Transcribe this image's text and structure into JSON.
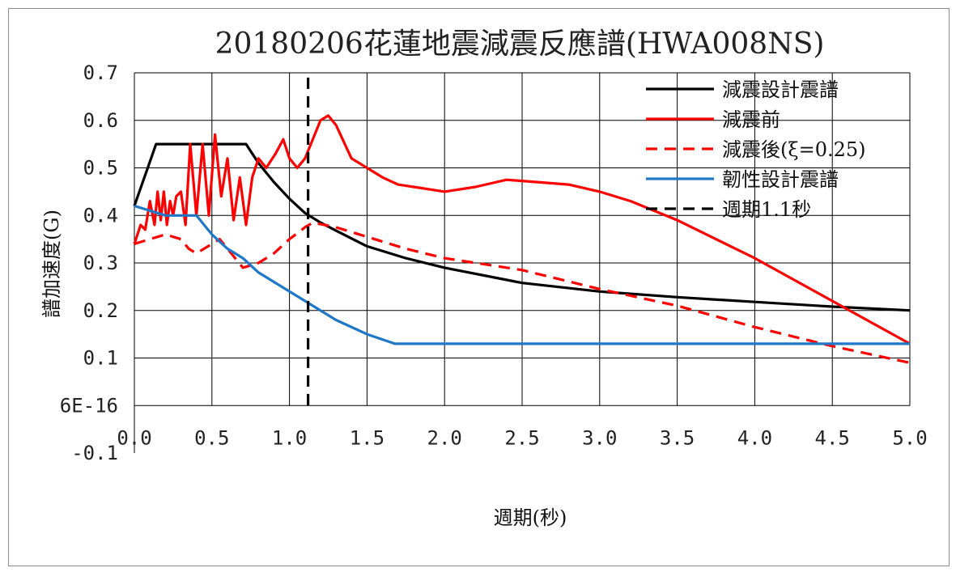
{
  "chart_data": {
    "type": "line",
    "title": "20180206花蓮地震減震反應譜(HWA008NS)",
    "xlabel": "週期(秒)",
    "ylabel": "譜加速度(G)",
    "xlim": [
      0.0,
      5.0
    ],
    "ylim": [
      -0.1,
      0.7
    ],
    "x_ticks": [
      "0.0",
      "0.5",
      "1.0",
      "1.5",
      "2.0",
      "2.5",
      "3.0",
      "3.5",
      "4.0",
      "4.5",
      "5.0"
    ],
    "x_tick_values": [
      0.0,
      0.5,
      1.0,
      1.5,
      2.0,
      2.5,
      3.0,
      3.5,
      4.0,
      4.5,
      5.0
    ],
    "y_ticks": [
      "0.7",
      "0.6",
      "0.5",
      "0.4",
      "0.3",
      "0.2",
      "0.1",
      "6E-16",
      "-0.1"
    ],
    "y_tick_values": [
      0.7,
      0.6,
      0.5,
      0.4,
      0.3,
      0.2,
      0.1,
      0.0,
      -0.1
    ],
    "grid": true,
    "legend_position": "top-right",
    "series": [
      {
        "name": "減震設計震譜",
        "color": "#000000",
        "dash": "solid",
        "x": [
          0.0,
          0.14,
          0.3,
          0.5,
          0.72,
          0.8,
          0.9,
          1.0,
          1.1,
          1.2,
          1.3,
          1.5,
          1.75,
          2.0,
          2.5,
          3.0,
          3.5,
          4.0,
          4.5,
          5.0
        ],
        "y": [
          0.42,
          0.55,
          0.55,
          0.55,
          0.55,
          0.51,
          0.47,
          0.435,
          0.405,
          0.385,
          0.368,
          0.335,
          0.31,
          0.29,
          0.258,
          0.24,
          0.228,
          0.218,
          0.208,
          0.2
        ]
      },
      {
        "name": "減震前",
        "color": "#ff0000",
        "dash": "solid",
        "x": [
          0.0,
          0.04,
          0.07,
          0.1,
          0.13,
          0.15,
          0.17,
          0.19,
          0.21,
          0.23,
          0.25,
          0.27,
          0.3,
          0.33,
          0.36,
          0.4,
          0.44,
          0.48,
          0.52,
          0.56,
          0.6,
          0.64,
          0.68,
          0.72,
          0.76,
          0.8,
          0.85,
          0.91,
          0.96,
          1.0,
          1.05,
          1.1,
          1.2,
          1.25,
          1.3,
          1.4,
          1.5,
          1.6,
          1.7,
          1.8,
          1.9,
          2.0,
          2.2,
          2.4,
          2.6,
          2.8,
          3.0,
          3.2,
          3.5,
          4.0,
          4.5,
          5.0
        ],
        "y": [
          0.34,
          0.38,
          0.37,
          0.43,
          0.38,
          0.45,
          0.39,
          0.45,
          0.38,
          0.43,
          0.4,
          0.44,
          0.45,
          0.38,
          0.55,
          0.4,
          0.55,
          0.4,
          0.57,
          0.44,
          0.52,
          0.39,
          0.48,
          0.38,
          0.48,
          0.52,
          0.5,
          0.53,
          0.56,
          0.52,
          0.5,
          0.52,
          0.6,
          0.61,
          0.59,
          0.52,
          0.5,
          0.48,
          0.465,
          0.46,
          0.455,
          0.45,
          0.46,
          0.475,
          0.47,
          0.465,
          0.45,
          0.43,
          0.39,
          0.31,
          0.22,
          0.13
        ]
      },
      {
        "name": "減震後(ξ=0.25)",
        "color": "#ff0000",
        "dash": "dashed",
        "x": [
          0.0,
          0.1,
          0.2,
          0.3,
          0.35,
          0.4,
          0.5,
          0.55,
          0.6,
          0.65,
          0.7,
          0.8,
          0.9,
          1.0,
          1.1,
          1.15,
          1.3,
          1.5,
          1.75,
          2.0,
          2.5,
          3.0,
          3.5,
          4.0,
          4.5,
          5.0
        ],
        "y": [
          0.34,
          0.35,
          0.36,
          0.35,
          0.33,
          0.32,
          0.34,
          0.35,
          0.33,
          0.31,
          0.29,
          0.3,
          0.32,
          0.35,
          0.375,
          0.385,
          0.375,
          0.355,
          0.33,
          0.31,
          0.285,
          0.245,
          0.21,
          0.165,
          0.125,
          0.09
        ]
      },
      {
        "name": "韌性設計震譜",
        "color": "#1f77c8",
        "dash": "solid",
        "x": [
          0.0,
          0.2,
          0.4,
          0.5,
          0.6,
          0.7,
          0.8,
          0.9,
          1.0,
          1.1,
          1.2,
          1.3,
          1.5,
          1.68,
          2.0,
          3.0,
          4.0,
          5.0
        ],
        "y": [
          0.42,
          0.4,
          0.4,
          0.36,
          0.33,
          0.31,
          0.28,
          0.26,
          0.24,
          0.22,
          0.2,
          0.18,
          0.15,
          0.13,
          0.13,
          0.13,
          0.13,
          0.13
        ]
      },
      {
        "name": "週期1.1秒",
        "color": "#000000",
        "dash": "dashed",
        "x": [
          1.12,
          1.12
        ],
        "y": [
          0.69,
          -0.01
        ]
      }
    ]
  }
}
